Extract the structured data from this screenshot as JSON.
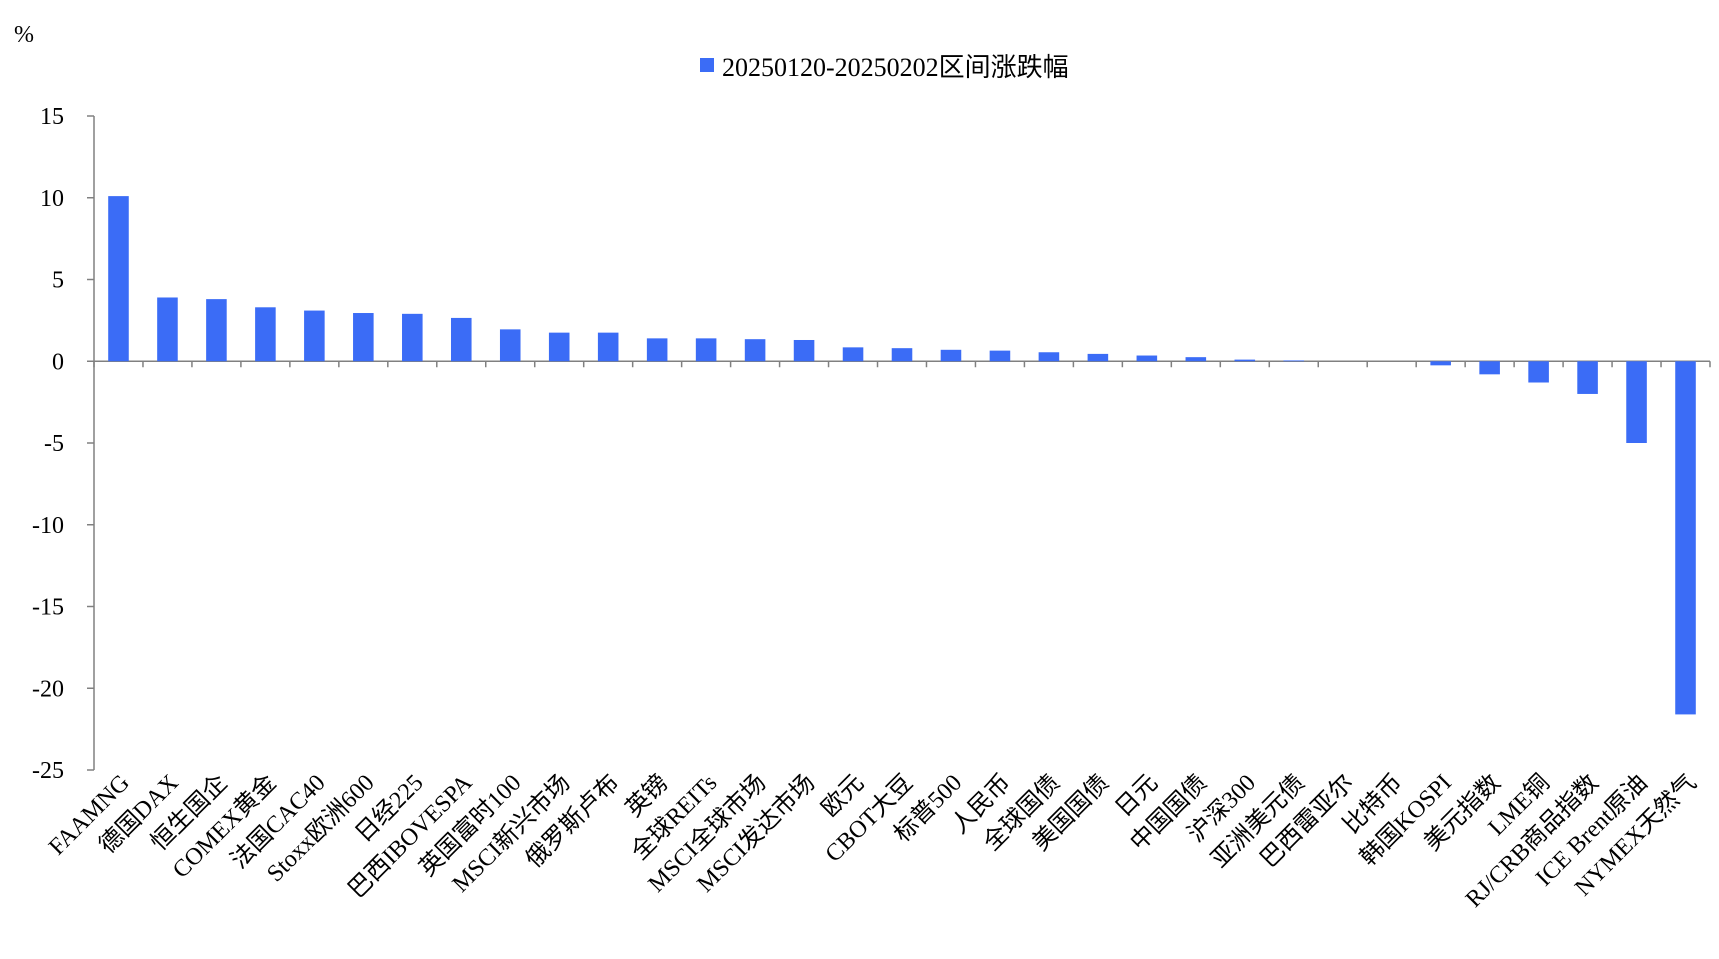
{
  "chart_data": {
    "type": "bar",
    "unit_label": "%",
    "legend": "20250120-20250202区间涨跌幅",
    "legend_placement": "top-center",
    "ylim": [
      -25,
      15
    ],
    "y_ticks": [
      15,
      10,
      5,
      0,
      -5,
      -10,
      -15,
      -20,
      -25
    ],
    "grid": false,
    "colors": {
      "bar": "#3b6cf6",
      "axis": "#808080"
    },
    "series": [
      {
        "name": "20250120-20250202区间涨跌幅",
        "values": [
          10.1,
          3.9,
          3.8,
          3.3,
          3.1,
          2.95,
          2.9,
          2.65,
          1.95,
          1.75,
          1.75,
          1.4,
          1.4,
          1.35,
          1.3,
          0.85,
          0.8,
          0.7,
          0.65,
          0.55,
          0.45,
          0.35,
          0.25,
          0.1,
          0.05,
          0.0,
          0.0,
          -0.25,
          -0.8,
          -1.3,
          -2.0,
          -5.0,
          -21.6
        ]
      }
    ],
    "categories": [
      "FAAMNG",
      "德国DAX",
      "恒生国企",
      "COMEX黄金",
      "法国CAC40",
      "Stoxx欧洲600",
      "日经225",
      "巴西IBOVESPA",
      "英国富时100",
      "MSCI新兴市场",
      "俄罗斯卢布",
      "英镑",
      "全球REITs",
      "MSCI全球市场",
      "MSCI发达市场",
      "欧元",
      "CBOT大豆",
      "标普500",
      "人民币",
      "全球国债",
      "美国国债",
      "日元",
      "中国国债",
      "沪深300",
      "亚洲美元债",
      "巴西雷亚尔",
      "比特币",
      "韩国KOSPI",
      "美元指数",
      "LME铜",
      "RJ/CRB商品指数",
      "ICE Brent原油",
      "NYMEX天然气"
    ]
  }
}
